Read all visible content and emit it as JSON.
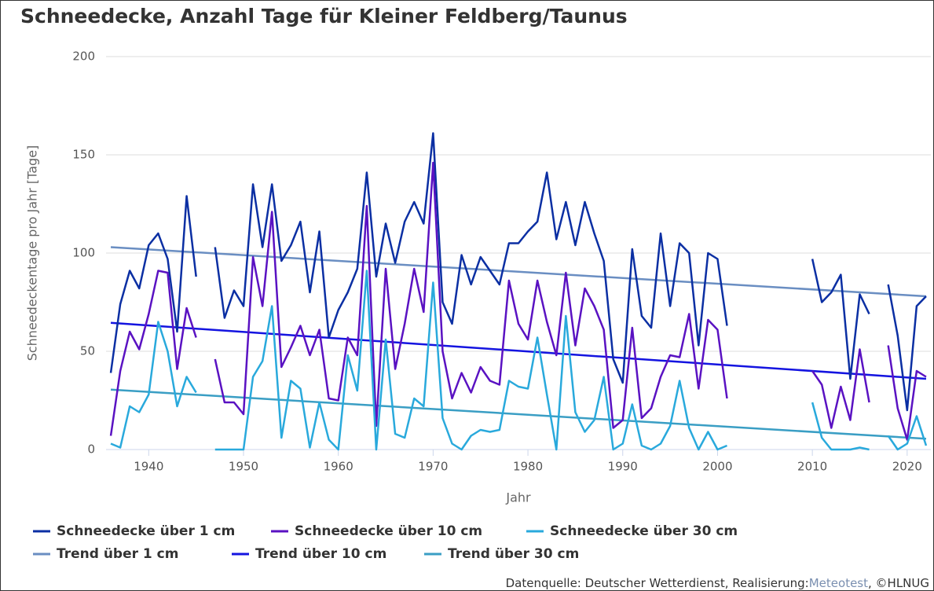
{
  "chart_data": {
    "type": "line",
    "title": "Schneedecke, Anzahl Tage für Kleiner Feldberg/Taunus",
    "y_label": "Schneedeckentage pro Jahr [Tage]",
    "x_label": "Jahr",
    "source_prefix": "Datenquelle: Deutscher Wetterdienst, Realisierung:",
    "source_link": "Meteotest",
    "source_suffix": ", ©HLNUG",
    "xlim": [
      1935.5,
      2022.5
    ],
    "xticks": [
      1940,
      1950,
      1960,
      1970,
      1980,
      1990,
      2000,
      2010,
      2020
    ],
    "ylim": [
      0,
      200
    ],
    "yticks": [
      0,
      50,
      100,
      150,
      200
    ],
    "grid": true,
    "legend": "bottom",
    "x": [
      1936,
      1937,
      1938,
      1939,
      1940,
      1941,
      1942,
      1943,
      1944,
      1945,
      1946,
      1947,
      1948,
      1949,
      1950,
      1951,
      1952,
      1953,
      1954,
      1955,
      1956,
      1957,
      1958,
      1959,
      1960,
      1961,
      1962,
      1963,
      1964,
      1965,
      1966,
      1967,
      1968,
      1969,
      1970,
      1971,
      1972,
      1973,
      1974,
      1975,
      1976,
      1977,
      1978,
      1979,
      1980,
      1981,
      1982,
      1983,
      1984,
      1985,
      1986,
      1987,
      1988,
      1989,
      1990,
      1991,
      1992,
      1993,
      1994,
      1995,
      1996,
      1997,
      1998,
      1999,
      2000,
      2001,
      2002,
      2003,
      2004,
      2005,
      2006,
      2007,
      2008,
      2009,
      2010,
      2011,
      2012,
      2013,
      2014,
      2015,
      2016,
      2017,
      2018,
      2019,
      2020,
      2021,
      2022
    ],
    "series": [
      {
        "name": "Schneedecke über 1 cm",
        "color": "#0b2fa3",
        "values": [
          39,
          74,
          91,
          82,
          104,
          110,
          97,
          60,
          129,
          88,
          null,
          103,
          67,
          81,
          73,
          135,
          103,
          135,
          96,
          104,
          116,
          80,
          111,
          57,
          71,
          80,
          92,
          141,
          88,
          115,
          95,
          116,
          126,
          115,
          161,
          75,
          64,
          99,
          84,
          98,
          91,
          84,
          105,
          105,
          111,
          116,
          141,
          107,
          126,
          104,
          126,
          110,
          96,
          46,
          34,
          102,
          68,
          62,
          110,
          73,
          105,
          100,
          53,
          100,
          97,
          63,
          null,
          null,
          null,
          null,
          null,
          null,
          null,
          null,
          97,
          75,
          80,
          89,
          36,
          79,
          69,
          null,
          84,
          58,
          20,
          73,
          78
        ]
      },
      {
        "name": "Schneedecke über 10 cm",
        "color": "#5a12c2",
        "values": [
          7,
          40,
          60,
          51,
          69,
          91,
          90,
          41,
          72,
          57,
          null,
          46,
          24,
          24,
          18,
          98,
          73,
          121,
          42,
          52,
          63,
          48,
          61,
          26,
          25,
          57,
          48,
          124,
          12,
          92,
          41,
          64,
          92,
          70,
          146,
          50,
          26,
          39,
          29,
          42,
          35,
          33,
          86,
          64,
          56,
          86,
          65,
          48,
          90,
          53,
          82,
          73,
          61,
          11,
          15,
          62,
          16,
          21,
          37,
          48,
          47,
          69,
          31,
          66,
          61,
          26,
          null,
          null,
          null,
          null,
          null,
          null,
          null,
          null,
          40,
          33,
          11,
          32,
          15,
          51,
          24,
          null,
          53,
          21,
          5,
          40,
          37
        ]
      },
      {
        "name": "Schneedecke über 30 cm",
        "color": "#29a9dc",
        "values": [
          3,
          1,
          22,
          19,
          28,
          65,
          50,
          22,
          37,
          29,
          null,
          0,
          0,
          0,
          0,
          37,
          45,
          73,
          6,
          35,
          31,
          1,
          24,
          5,
          0,
          48,
          30,
          91,
          0,
          56,
          8,
          6,
          26,
          22,
          85,
          16,
          3,
          0,
          7,
          10,
          9,
          10,
          35,
          32,
          31,
          57,
          28,
          0,
          68,
          19,
          9,
          15,
          37,
          0,
          3,
          23,
          2,
          0,
          3,
          12,
          35,
          11,
          0,
          9,
          0,
          2,
          null,
          null,
          null,
          null,
          null,
          null,
          null,
          null,
          24,
          6,
          0,
          0,
          0,
          1,
          0,
          null,
          7,
          0,
          3,
          17,
          2
        ]
      },
      {
        "name": "Trend über 1 cm",
        "color": "#6a8ec2",
        "x": [
          1936,
          2022
        ],
        "values": [
          103,
          78
        ]
      },
      {
        "name": "Trend über 10 cm",
        "color": "#1414e0",
        "x": [
          1936,
          2022
        ],
        "values": [
          64.5,
          36
        ]
      },
      {
        "name": "Trend über 30 cm",
        "color": "#3a9ec4",
        "x": [
          1936,
          2022
        ],
        "values": [
          30.5,
          5.5
        ]
      }
    ]
  }
}
